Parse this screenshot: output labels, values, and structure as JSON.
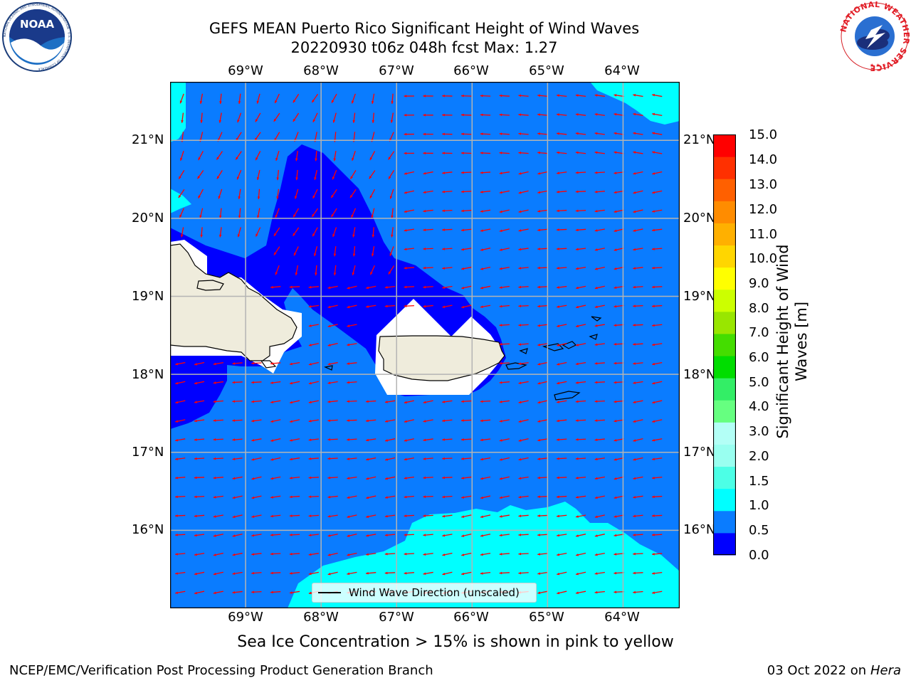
{
  "header": {
    "title_line1": "GEFS MEAN Puerto Rico Significant Height of Wind Waves",
    "title_line2": "20220930 t06z 048h fcst   Max: 1.27"
  },
  "logos": {
    "noaa": "NOAA",
    "noaa_ring": "NATIONAL OCEANIC AND ATMOSPHERIC ADMINISTRATION · U.S. DEPARTMENT OF COMMERCE",
    "nws_ring": "NATIONAL WEATHER SERVICE"
  },
  "map": {
    "lon_labels": [
      "69°W",
      "68°W",
      "67°W",
      "66°W",
      "65°W",
      "64°W"
    ],
    "lat_labels": [
      "21°N",
      "20°N",
      "19°N",
      "18°N",
      "17°N",
      "16°N"
    ],
    "extent": {
      "lon_min": -70.0,
      "lon_max": -63.25,
      "lat_min": 15.0,
      "lat_max": 21.75
    },
    "legend_label": "Wind Wave Direction (unscaled)",
    "arrow_color": "#ff0000",
    "land_color": "#efecdc",
    "gridline_color": "#b4b4b4"
  },
  "colorbar": {
    "title": "Significant Height of Wind Waves [m]",
    "title_line1": "Significant Height of Wind",
    "title_line2": "Waves [m]",
    "tick_labels": [
      "15.0",
      "14.0",
      "13.0",
      "12.0",
      "11.0",
      "10.0",
      "9.0",
      "8.0",
      "7.0",
      "6.0",
      "5.0",
      "4.0",
      "3.0",
      "2.0",
      "1.5",
      "1.0",
      "0.5",
      "0.0"
    ],
    "colors": [
      "#0000ff",
      "#0a7cff",
      "#00ffff",
      "#4cffe6",
      "#99fff0",
      "#b3fff6",
      "#66ff80",
      "#33ee66",
      "#00dd00",
      "#44dd00",
      "#99e600",
      "#ccff00",
      "#ffff00",
      "#ffd600",
      "#ffb000",
      "#ff8c00",
      "#ff6000",
      "#ff3000",
      "#ff0000"
    ]
  },
  "caption": "Sea Ice Concentration > 15% is shown in pink to yellow",
  "footer": {
    "left": "NCEP/EMC/Verification Post Processing Product Generation Branch",
    "date": "03 Oct 2022 on ",
    "host": "Hera"
  }
}
